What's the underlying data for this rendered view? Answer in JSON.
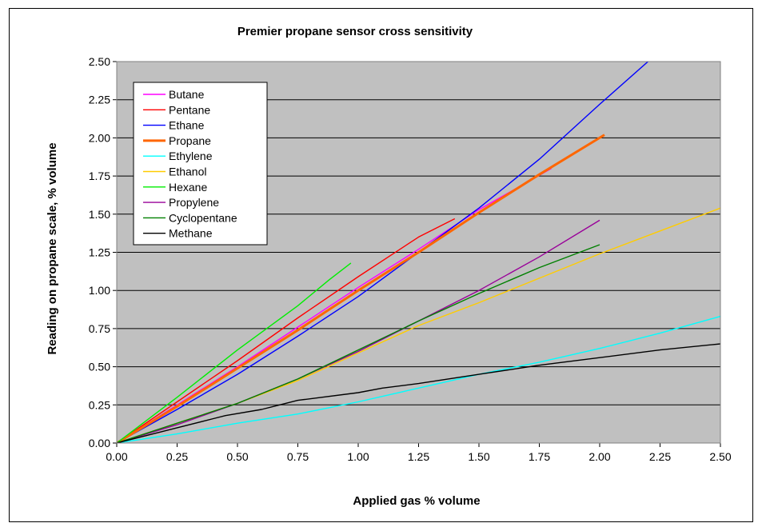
{
  "chart_data": {
    "type": "line",
    "title": "Premier propane sensor cross sensitivity",
    "xlabel": "Applied gas % volume",
    "ylabel": "Reading on propane scale, % volume",
    "xlim": [
      0,
      2.5
    ],
    "ylim": [
      0,
      2.5
    ],
    "x_ticks": [
      "0.00",
      "0.25",
      "0.50",
      "0.75",
      "1.00",
      "1.25",
      "1.50",
      "1.75",
      "2.00",
      "2.25",
      "2.50"
    ],
    "y_ticks": [
      "0.00",
      "0.25",
      "0.50",
      "0.75",
      "1.00",
      "1.25",
      "1.50",
      "1.75",
      "2.00",
      "2.25",
      "2.50"
    ],
    "grid": "horizontal",
    "plot_background": "#c0c0c0",
    "legend_position": "top-left",
    "series": [
      {
        "name": "Butane",
        "color": "#ff00ff",
        "points": [
          [
            0,
            0
          ],
          [
            0.25,
            0.25
          ],
          [
            0.5,
            0.5
          ],
          [
            0.75,
            0.76
          ],
          [
            1.0,
            1.02
          ],
          [
            1.25,
            1.27
          ],
          [
            1.5,
            1.53
          ],
          [
            1.8,
            1.8
          ]
        ]
      },
      {
        "name": "Pentane",
        "color": "#ff0000",
        "points": [
          [
            0,
            0
          ],
          [
            0.25,
            0.27
          ],
          [
            0.5,
            0.54
          ],
          [
            0.75,
            0.82
          ],
          [
            1.0,
            1.09
          ],
          [
            1.25,
            1.35
          ],
          [
            1.4,
            1.47
          ]
        ]
      },
      {
        "name": "Ethane",
        "color": "#0000ff",
        "points": [
          [
            0,
            0
          ],
          [
            0.25,
            0.22
          ],
          [
            0.5,
            0.45
          ],
          [
            0.75,
            0.7
          ],
          [
            1.0,
            0.96
          ],
          [
            1.25,
            1.25
          ],
          [
            1.5,
            1.54
          ],
          [
            1.75,
            1.86
          ],
          [
            2.0,
            2.22
          ],
          [
            2.2,
            2.5
          ]
        ]
      },
      {
        "name": "Propane",
        "color": "#ff6600",
        "points": [
          [
            0,
            0
          ],
          [
            0.25,
            0.24
          ],
          [
            0.5,
            0.49
          ],
          [
            0.75,
            0.74
          ],
          [
            1.0,
            1.0
          ],
          [
            1.25,
            1.25
          ],
          [
            1.5,
            1.51
          ],
          [
            1.75,
            1.76
          ],
          [
            2.02,
            2.02
          ]
        ]
      },
      {
        "name": "Ethylene",
        "color": "#00ffff",
        "points": [
          [
            0,
            0
          ],
          [
            0.25,
            0.06
          ],
          [
            0.5,
            0.13
          ],
          [
            0.75,
            0.19
          ],
          [
            1.0,
            0.27
          ],
          [
            1.25,
            0.36
          ],
          [
            1.5,
            0.45
          ],
          [
            1.75,
            0.53
          ],
          [
            2.0,
            0.62
          ],
          [
            2.25,
            0.72
          ],
          [
            2.5,
            0.83
          ]
        ]
      },
      {
        "name": "Ethanol",
        "color": "#ffcc00",
        "points": [
          [
            0,
            0
          ],
          [
            0.25,
            0.13
          ],
          [
            0.5,
            0.26
          ],
          [
            0.75,
            0.41
          ],
          [
            1.0,
            0.59
          ],
          [
            1.25,
            0.77
          ],
          [
            1.5,
            0.92
          ],
          [
            1.75,
            1.08
          ],
          [
            2.0,
            1.24
          ],
          [
            2.25,
            1.39
          ],
          [
            2.5,
            1.54
          ]
        ]
      },
      {
        "name": "Hexane",
        "color": "#00ee00",
        "points": [
          [
            0,
            0
          ],
          [
            0.25,
            0.3
          ],
          [
            0.5,
            0.61
          ],
          [
            0.75,
            0.9
          ],
          [
            0.88,
            1.07
          ],
          [
            0.97,
            1.18
          ]
        ]
      },
      {
        "name": "Propylene",
        "color": "#990099",
        "points": [
          [
            0,
            0
          ],
          [
            0.25,
            0.12
          ],
          [
            0.5,
            0.26
          ],
          [
            0.75,
            0.42
          ],
          [
            1.0,
            0.6
          ],
          [
            1.25,
            0.8
          ],
          [
            1.5,
            1.0
          ],
          [
            1.75,
            1.22
          ],
          [
            2.0,
            1.46
          ]
        ]
      },
      {
        "name": "Cyclopentane",
        "color": "#008000",
        "points": [
          [
            0,
            0
          ],
          [
            0.25,
            0.13
          ],
          [
            0.5,
            0.26
          ],
          [
            0.75,
            0.42
          ],
          [
            1.0,
            0.61
          ],
          [
            1.25,
            0.8
          ],
          [
            1.5,
            0.98
          ],
          [
            1.75,
            1.15
          ],
          [
            2.0,
            1.3
          ]
        ]
      },
      {
        "name": "Methane",
        "color": "#000000",
        "points": [
          [
            0,
            0
          ],
          [
            0.25,
            0.1
          ],
          [
            0.4,
            0.16
          ],
          [
            0.45,
            0.18
          ],
          [
            0.6,
            0.22
          ],
          [
            0.75,
            0.28
          ],
          [
            1.0,
            0.33
          ],
          [
            1.1,
            0.36
          ],
          [
            1.25,
            0.39
          ],
          [
            1.5,
            0.45
          ],
          [
            1.75,
            0.51
          ],
          [
            2.0,
            0.56
          ],
          [
            2.25,
            0.61
          ],
          [
            2.5,
            0.65
          ]
        ]
      }
    ]
  }
}
